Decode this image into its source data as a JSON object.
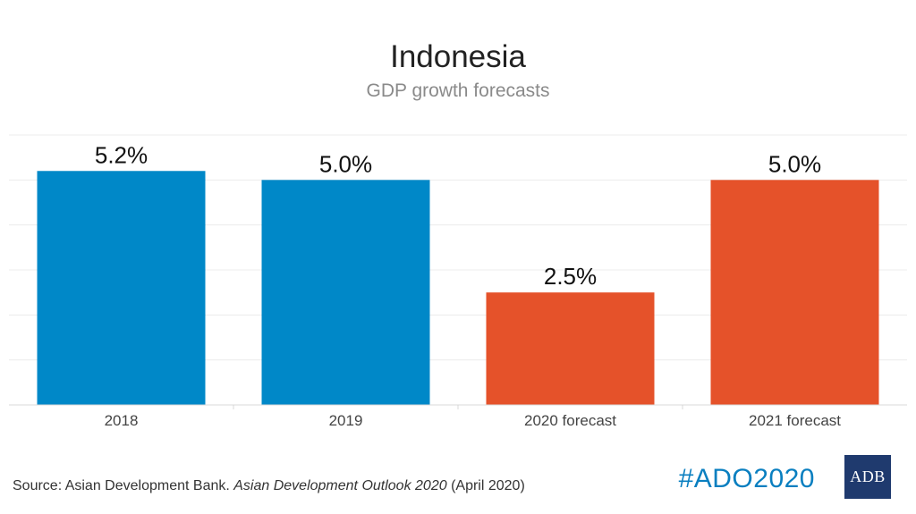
{
  "title": "Indonesia",
  "subtitle": "GDP growth forecasts",
  "chart_data": {
    "type": "bar",
    "title": "Indonesia",
    "subtitle": "GDP growth forecasts",
    "categories": [
      "2018",
      "2019",
      "2020 forecast",
      "2021 forecast"
    ],
    "values": [
      5.2,
      5.0,
      2.5,
      5.0
    ],
    "data_labels": [
      "5.2%",
      "5.0%",
      "2.5%",
      "5.0%"
    ],
    "colors": [
      "#0088c8",
      "#0088c8",
      "#e5522a",
      "#e5522a"
    ],
    "ylim": [
      0,
      6
    ],
    "grid": true,
    "xlabel": "",
    "ylabel": ""
  },
  "source": {
    "prefix": "Source: Asian Development Bank. ",
    "publication": "Asian Development Outlook 2020",
    "suffix": " (April 2020)"
  },
  "hashtag": "#ADO2020",
  "logo_text": "ADB"
}
